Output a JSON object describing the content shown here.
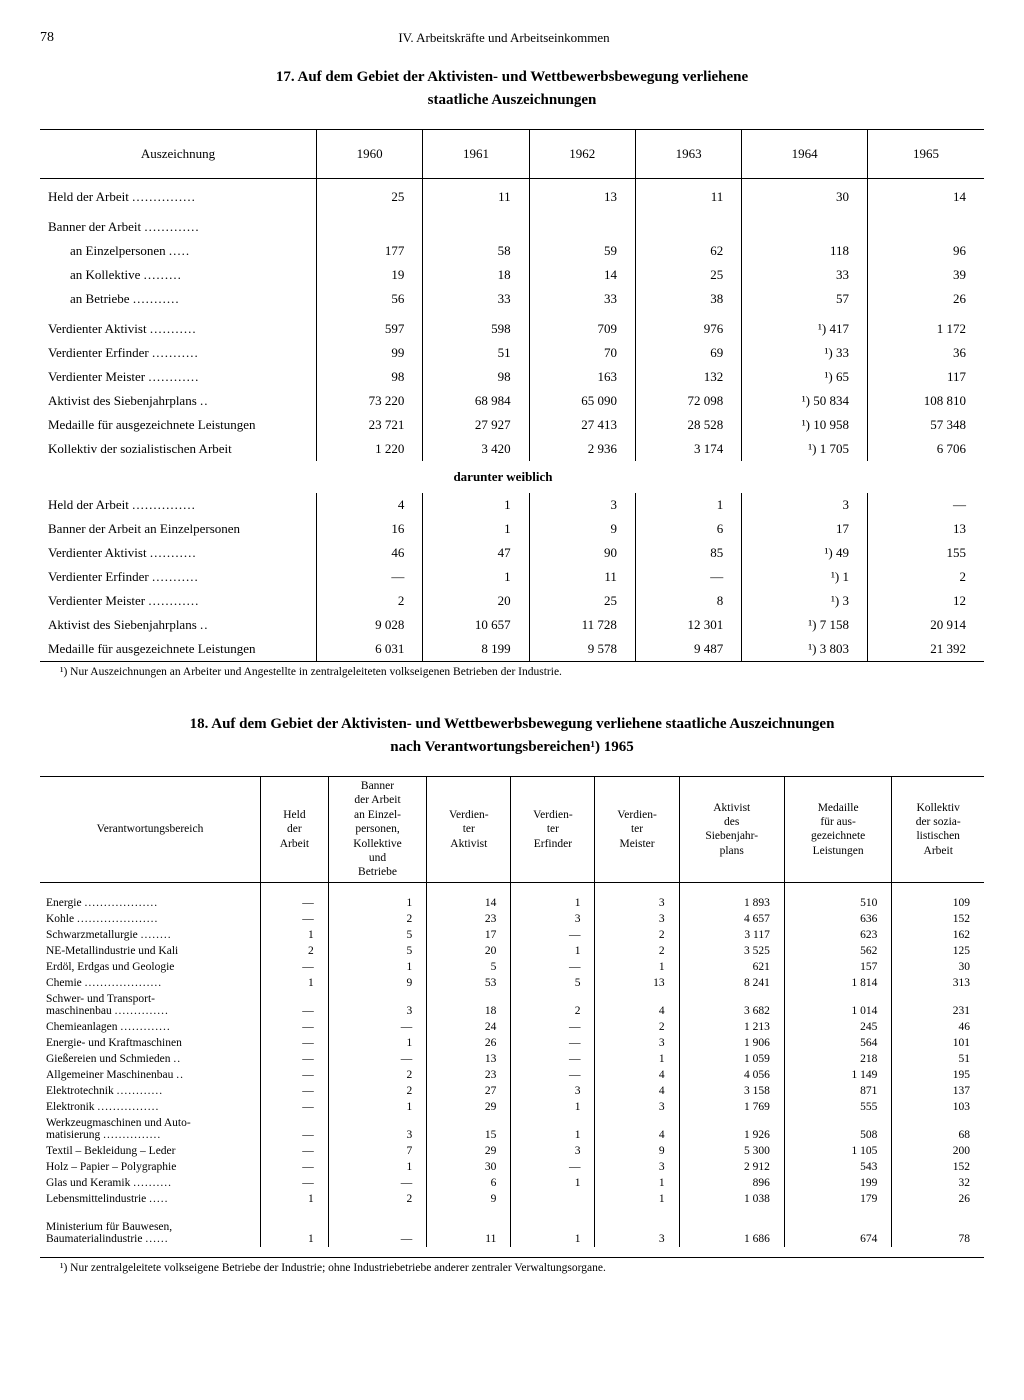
{
  "page_number": "78",
  "chapter": "IV. Arbeitskräfte und Arbeitseinkommen",
  "table17": {
    "title_line1": "17. Auf dem Gebiet der Aktivisten- und Wettbewerbsbewegung verliehene",
    "title_line2": "staatliche Auszeichnungen",
    "columns": [
      "Auszeichnung",
      "1960",
      "1961",
      "1962",
      "1963",
      "1964",
      "1965"
    ],
    "rows_main": [
      {
        "label": "Held der Arbeit",
        "vals": [
          "25",
          "11",
          "13",
          "11",
          "30",
          "14"
        ],
        "space": true
      },
      {
        "label": "Banner der Arbeit",
        "vals": [
          "",
          "",
          "",
          "",
          "",
          ""
        ],
        "space": true
      },
      {
        "label": "an Einzelpersonen",
        "vals": [
          "177",
          "58",
          "59",
          "62",
          "118",
          "96"
        ],
        "indent": true
      },
      {
        "label": "an Kollektive",
        "vals": [
          "19",
          "18",
          "14",
          "25",
          "33",
          "39"
        ],
        "indent": true
      },
      {
        "label": "an Betriebe",
        "vals": [
          "56",
          "33",
          "33",
          "38",
          "57",
          "26"
        ],
        "indent": true
      },
      {
        "label": "Verdienter Aktivist",
        "vals": [
          "597",
          "598",
          "709",
          "976",
          "¹) 417",
          "1 172"
        ],
        "space": true
      },
      {
        "label": "Verdienter Erfinder",
        "vals": [
          "99",
          "51",
          "70",
          "69",
          "¹) 33",
          "36"
        ]
      },
      {
        "label": "Verdienter Meister",
        "vals": [
          "98",
          "98",
          "163",
          "132",
          "¹) 65",
          "117"
        ]
      },
      {
        "label": "Aktivist des Siebenjahrplans",
        "vals": [
          "73 220",
          "68 984",
          "65 090",
          "72 098",
          "¹) 50 834",
          "108 810"
        ]
      },
      {
        "label": "Medaille für ausgezeichnete Leistungen",
        "vals": [
          "23 721",
          "27 927",
          "27 413",
          "28 528",
          "¹) 10 958",
          "57 348"
        ]
      },
      {
        "label": "Kollektiv der sozialistischen Arbeit",
        "vals": [
          "1 220",
          "3 420",
          "2 936",
          "3 174",
          "¹) 1 705",
          "6 706"
        ]
      }
    ],
    "subheader": "darunter weiblich",
    "rows_sub": [
      {
        "label": "Held der Arbeit",
        "vals": [
          "4",
          "1",
          "3",
          "1",
          "3",
          "—"
        ]
      },
      {
        "label": "Banner der Arbeit an Einzelpersonen",
        "vals": [
          "16",
          "1",
          "9",
          "6",
          "17",
          "13"
        ]
      },
      {
        "label": "Verdienter Aktivist",
        "vals": [
          "46",
          "47",
          "90",
          "85",
          "¹) 49",
          "155"
        ]
      },
      {
        "label": "Verdienter Erfinder",
        "vals": [
          "—",
          "1",
          "11",
          "—",
          "¹) 1",
          "2"
        ]
      },
      {
        "label": "Verdienter Meister",
        "vals": [
          "2",
          "20",
          "25",
          "8",
          "¹) 3",
          "12"
        ]
      },
      {
        "label": "Aktivist des Siebenjahrplans",
        "vals": [
          "9 028",
          "10 657",
          "11 728",
          "12 301",
          "¹) 7 158",
          "20 914"
        ]
      },
      {
        "label": "Medaille für ausgezeichnete Leistungen",
        "vals": [
          "6 031",
          "8 199",
          "9 578",
          "9 487",
          "¹) 3 803",
          "21 392"
        ]
      }
    ],
    "footnote": "¹) Nur Auszeichnungen an Arbeiter und Angestellte in zentralgeleiteten volkseigenen Betrieben der Industrie."
  },
  "table18": {
    "title_line1": "18. Auf dem Gebiet der Aktivisten- und Wettbewerbsbewegung verliehene staatliche Auszeichnungen",
    "title_line2": "nach Verantwortungsbereichen¹) 1965",
    "columns": [
      "Verantwortungsbereich",
      "Held\nder\nArbeit",
      "Banner\nder Arbeit\nan Einzel-\npersonen,\nKollektive\nund\nBetriebe",
      "Verdien-\nter\nAktivist",
      "Verdien-\nter\nErfinder",
      "Verdien-\nter\nMeister",
      "Aktivist\ndes\nSiebenjahr-\nplans",
      "Medaille\nfür aus-\ngezeichnete\nLeistungen",
      "Kollektiv\nder sozia-\nlistischen\nArbeit"
    ],
    "rows": [
      {
        "label": "Energie",
        "vals": [
          "—",
          "1",
          "14",
          "1",
          "3",
          "1 893",
          "510",
          "109"
        ]
      },
      {
        "label": "Kohle",
        "vals": [
          "—",
          "2",
          "23",
          "3",
          "3",
          "4 657",
          "636",
          "152"
        ]
      },
      {
        "label": "Schwarzmetallurgie",
        "vals": [
          "1",
          "5",
          "17",
          "—",
          "2",
          "3 117",
          "623",
          "162"
        ]
      },
      {
        "label": "NE-Metallindustrie und Kali",
        "vals": [
          "2",
          "5",
          "20",
          "1",
          "2",
          "3 525",
          "562",
          "125"
        ]
      },
      {
        "label": "Erdöl, Erdgas und Geologie",
        "vals": [
          "—",
          "1",
          "5",
          "—",
          "1",
          "621",
          "157",
          "30"
        ]
      },
      {
        "label": "Chemie",
        "vals": [
          "1",
          "9",
          "53",
          "5",
          "13",
          "8 241",
          "1 814",
          "313"
        ]
      },
      {
        "label": "Schwer- und Transport-\n  maschinenbau",
        "vals": [
          "—",
          "3",
          "18",
          "2",
          "4",
          "3 682",
          "1 014",
          "231"
        ],
        "multi": true
      },
      {
        "label": "Chemieanlagen",
        "vals": [
          "—",
          "—",
          "24",
          "—",
          "2",
          "1 213",
          "245",
          "46"
        ]
      },
      {
        "label": "Energie- und Kraftmaschinen",
        "vals": [
          "—",
          "1",
          "26",
          "—",
          "3",
          "1 906",
          "564",
          "101"
        ]
      },
      {
        "label": "Gießereien und Schmieden",
        "vals": [
          "—",
          "—",
          "13",
          "—",
          "1",
          "1 059",
          "218",
          "51"
        ]
      },
      {
        "label": "Allgemeiner Maschinenbau",
        "vals": [
          "—",
          "2",
          "23",
          "—",
          "4",
          "4 056",
          "1 149",
          "195"
        ]
      },
      {
        "label": "Elektrotechnik",
        "vals": [
          "—",
          "2",
          "27",
          "3",
          "4",
          "3 158",
          "871",
          "137"
        ]
      },
      {
        "label": "Elektronik",
        "vals": [
          "—",
          "1",
          "29",
          "1",
          "3",
          "1 769",
          "555",
          "103"
        ]
      },
      {
        "label": "Werkzeugmaschinen und Auto-\n  matisierung",
        "vals": [
          "—",
          "3",
          "15",
          "1",
          "4",
          "1 926",
          "508",
          "68"
        ],
        "multi": true
      },
      {
        "label": "Textil – Bekleidung – Leder",
        "vals": [
          "—",
          "7",
          "29",
          "3",
          "9",
          "5 300",
          "1 105",
          "200"
        ]
      },
      {
        "label": "Holz – Papier – Polygraphie",
        "vals": [
          "—",
          "1",
          "30",
          "—",
          "3",
          "2 912",
          "543",
          "152"
        ]
      },
      {
        "label": "Glas und Keramik",
        "vals": [
          "—",
          "—",
          "6",
          "1",
          "1",
          "896",
          "199",
          "32"
        ]
      },
      {
        "label": "Lebensmittelindustrie",
        "vals": [
          "1",
          "2",
          "9",
          "",
          "1",
          "1 038",
          "179",
          "26"
        ]
      }
    ],
    "gap_row": {
      "label": "Ministerium für Bauwesen,\n  Baumaterialindustrie",
      "vals": [
        "1",
        "—",
        "11",
        "1",
        "3",
        "1 686",
        "674",
        "78"
      ]
    },
    "footnote": "¹) Nur zentralgeleitete volkseigene Betriebe der Industrie; ohne Industriebetriebe anderer zentraler Verwaltungsorgane."
  },
  "style": {
    "text_color": "#000000",
    "bg_color": "#ffffff",
    "font": "serif"
  }
}
